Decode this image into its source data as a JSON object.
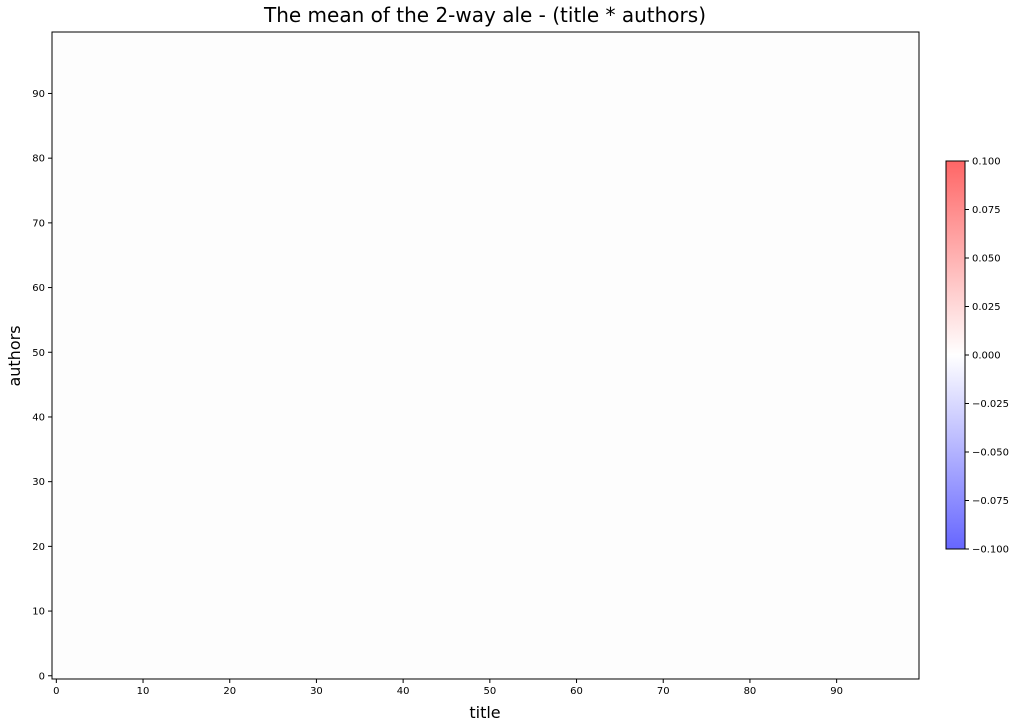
{
  "chart_data": {
    "type": "heatmap",
    "title": "The mean of the 2-way ale - (title * authors)",
    "xlabel": "title",
    "ylabel": "authors",
    "xlim": [
      -0.5,
      99.5
    ],
    "ylim": [
      -0.5,
      99.5
    ],
    "x_ticks": [
      0,
      10,
      20,
      30,
      40,
      50,
      60,
      70,
      80,
      90
    ],
    "y_ticks": [
      0,
      10,
      20,
      30,
      40,
      50,
      60,
      70,
      80,
      90
    ],
    "values": "all 0",
    "colorbar": {
      "colormap": "bwr",
      "alpha": 0.6,
      "min": -0.1,
      "max": 0.1,
      "ticks": [
        -0.1,
        -0.075,
        -0.05,
        -0.025,
        0.0,
        0.025,
        0.05,
        0.075,
        0.1
      ],
      "tick_labels": [
        "−0.100",
        "−0.075",
        "−0.050",
        "−0.025",
        "0.000",
        "0.025",
        "0.050",
        "0.075",
        "0.100"
      ],
      "colors": {
        "low": "#6666ff",
        "mid": "#ffffff",
        "high": "#ff6666"
      }
    },
    "grid": false,
    "legend": "none",
    "plot_fill": "#fdfdfd"
  }
}
